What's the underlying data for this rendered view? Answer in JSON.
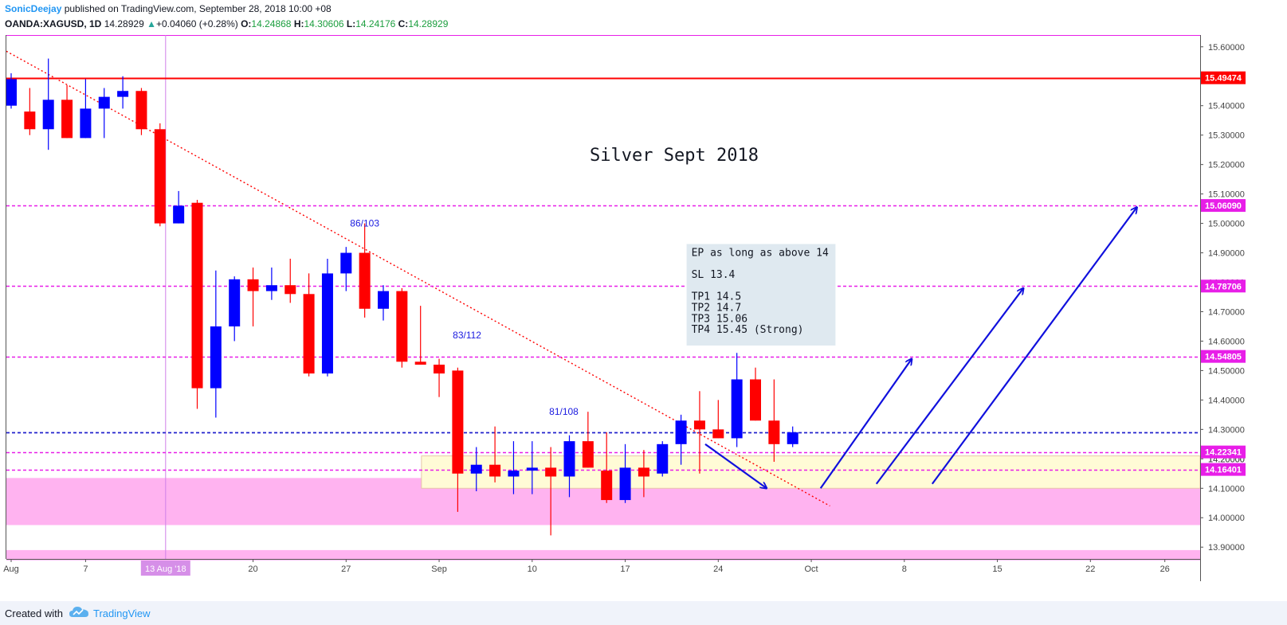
{
  "header": {
    "author": "SonicDeejay",
    "published": " published on TradingView.com, September 28, 2018 10:00 +08",
    "symbol": "OANDA:XAGUSD, 1D",
    "last": "14.28929",
    "up_arrow": "▲",
    "change": "+0.04060 (+0.28%)",
    "o_label": "O:",
    "o": "14.24868",
    "h_label": "H:",
    "h": "14.30606",
    "l_label": "L:",
    "l": "14.24176",
    "c_label": "C:",
    "c": "14.28929"
  },
  "footer": {
    "created_with": "Created with",
    "brand": "TradingView"
  },
  "chart_data": {
    "type": "candlestick",
    "title": "Silver Sept 2018",
    "colors": {
      "up": "#0000ff",
      "down": "#ff0000",
      "hline_red": "#ff0000",
      "hline_magenta": "#e81ee8",
      "hline_blue": "#2222cc",
      "zone": "#ffb3f0",
      "arrow": "#1010dd"
    },
    "y_range": [
      13.86,
      15.64
    ],
    "y_ticks": [
      "15.60000",
      "15.50000",
      "15.40000",
      "15.30000",
      "15.20000",
      "15.10000",
      "15.00000",
      "14.90000",
      "14.80000",
      "14.70000",
      "14.60000",
      "14.50000",
      "14.40000",
      "14.30000",
      "14.20000",
      "14.10000",
      "14.00000",
      "13.90000"
    ],
    "x_ticks": [
      {
        "label": "Aug",
        "index": 0
      },
      {
        "label": "7",
        "index": 4
      },
      {
        "label": "20",
        "index": 13
      },
      {
        "label": "27",
        "index": 18
      },
      {
        "label": "Sep",
        "index": 23
      },
      {
        "label": "10",
        "index": 28
      },
      {
        "label": "17",
        "index": 33
      },
      {
        "label": "24",
        "index": 38
      },
      {
        "label": "Oct",
        "index": 43
      },
      {
        "label": "8",
        "index": 48
      },
      {
        "label": "15",
        "index": 53
      },
      {
        "label": "22",
        "index": 58
      },
      {
        "label": "26",
        "index": 62
      }
    ],
    "x_marker": {
      "label": "13 Aug '18",
      "index": 8.3
    },
    "candles": [
      {
        "o": 15.4,
        "h": 15.51,
        "l": 15.39,
        "c": 15.49
      },
      {
        "o": 15.38,
        "h": 15.46,
        "l": 15.3,
        "c": 15.32
      },
      {
        "o": 15.32,
        "h": 15.56,
        "l": 15.25,
        "c": 15.42
      },
      {
        "o": 15.42,
        "h": 15.47,
        "l": 15.29,
        "c": 15.29
      },
      {
        "o": 15.29,
        "h": 15.49,
        "l": 15.29,
        "c": 15.39
      },
      {
        "o": 15.39,
        "h": 15.46,
        "l": 15.29,
        "c": 15.43
      },
      {
        "o": 15.43,
        "h": 15.5,
        "l": 15.39,
        "c": 15.45
      },
      {
        "o": 15.45,
        "h": 15.46,
        "l": 15.3,
        "c": 15.32
      },
      {
        "o": 15.32,
        "h": 15.34,
        "l": 14.99,
        "c": 15.0
      },
      {
        "o": 15.0,
        "h": 15.11,
        "l": 15.0,
        "c": 15.06
      },
      {
        "o": 15.07,
        "h": 15.08,
        "l": 14.37,
        "c": 14.44
      },
      {
        "o": 14.44,
        "h": 14.84,
        "l": 14.34,
        "c": 14.65
      },
      {
        "o": 14.65,
        "h": 14.82,
        "l": 14.6,
        "c": 14.81
      },
      {
        "o": 14.81,
        "h": 14.85,
        "l": 14.65,
        "c": 14.77
      },
      {
        "o": 14.77,
        "h": 14.85,
        "l": 14.74,
        "c": 14.79
      },
      {
        "o": 14.79,
        "h": 14.88,
        "l": 14.73,
        "c": 14.76
      },
      {
        "o": 14.76,
        "h": 14.83,
        "l": 14.48,
        "c": 14.49
      },
      {
        "o": 14.49,
        "h": 14.88,
        "l": 14.48,
        "c": 14.83
      },
      {
        "o": 14.83,
        "h": 14.92,
        "l": 14.77,
        "c": 14.9
      },
      {
        "o": 14.9,
        "h": 15.0,
        "l": 14.68,
        "c": 14.71
      },
      {
        "o": 14.71,
        "h": 14.79,
        "l": 14.67,
        "c": 14.77
      },
      {
        "o": 14.77,
        "h": 14.78,
        "l": 14.51,
        "c": 14.53
      },
      {
        "o": 14.53,
        "h": 14.72,
        "l": 14.52,
        "c": 14.52
      },
      {
        "o": 14.52,
        "h": 14.54,
        "l": 14.41,
        "c": 14.49
      },
      {
        "o": 14.5,
        "h": 14.51,
        "l": 14.02,
        "c": 14.15
      },
      {
        "o": 14.15,
        "h": 14.24,
        "l": 14.09,
        "c": 14.18
      },
      {
        "o": 14.18,
        "h": 14.31,
        "l": 14.12,
        "c": 14.14
      },
      {
        "o": 14.14,
        "h": 14.26,
        "l": 14.08,
        "c": 14.16
      },
      {
        "o": 14.16,
        "h": 14.26,
        "l": 14.08,
        "c": 14.17
      },
      {
        "o": 14.17,
        "h": 14.24,
        "l": 13.94,
        "c": 14.14
      },
      {
        "o": 14.14,
        "h": 14.28,
        "l": 14.07,
        "c": 14.26
      },
      {
        "o": 14.26,
        "h": 14.36,
        "l": 14.17,
        "c": 14.17
      },
      {
        "o": 14.16,
        "h": 14.29,
        "l": 14.05,
        "c": 14.06
      },
      {
        "o": 14.06,
        "h": 14.25,
        "l": 14.05,
        "c": 14.17
      },
      {
        "o": 14.17,
        "h": 14.23,
        "l": 14.07,
        "c": 14.14
      },
      {
        "o": 14.15,
        "h": 14.26,
        "l": 14.14,
        "c": 14.25
      },
      {
        "o": 14.25,
        "h": 14.35,
        "l": 14.18,
        "c": 14.33
      },
      {
        "o": 14.33,
        "h": 14.43,
        "l": 14.15,
        "c": 14.3
      },
      {
        "o": 14.3,
        "h": 14.4,
        "l": 14.27,
        "c": 14.27
      },
      {
        "o": 14.27,
        "h": 14.56,
        "l": 14.24,
        "c": 14.47
      },
      {
        "o": 14.47,
        "h": 14.51,
        "l": 14.33,
        "c": 14.33
      },
      {
        "o": 14.33,
        "h": 14.47,
        "l": 14.19,
        "c": 14.25
      },
      {
        "o": 14.25,
        "h": 14.31,
        "l": 14.24,
        "c": 14.29
      }
    ],
    "h_levels": [
      {
        "value": 15.49474,
        "label": "15.49474",
        "style": "solid-red"
      },
      {
        "value": 15.0609,
        "label": "15.06090",
        "style": "dashed-magenta"
      },
      {
        "value": 14.78706,
        "label": "14.78706",
        "style": "dashed-magenta"
      },
      {
        "value": 14.54805,
        "label": "14.54805",
        "style": "dashed-magenta"
      },
      {
        "value": 14.28929,
        "label": "",
        "style": "dashed-blue"
      },
      {
        "value": 14.22341,
        "label": "14.22341",
        "style": "dashed-magenta"
      },
      {
        "value": 14.16401,
        "label": "14.16401",
        "style": "dashed-magenta"
      }
    ],
    "partial_tick": "14.20000",
    "zones": [
      {
        "from": 13.975,
        "to": 14.135,
        "x0_index": -0.3,
        "x1_index": 64.3,
        "color": "#ffb3f0"
      },
      {
        "from": 13.855,
        "to": 13.89,
        "x0_index": -0.3,
        "x1_index": 64.3,
        "color": "#ffb3f0"
      },
      {
        "from": 14.1,
        "to": 14.21,
        "x0_index": 22.05,
        "x1_index": 64.3,
        "color": "#fffbd6"
      }
    ],
    "trendline": {
      "x0_index": -0.3,
      "y0": 15.585,
      "x1_index": 44.0,
      "y1": 14.04
    },
    "annotations": [
      {
        "text": "86/103",
        "x_index": 19.0,
        "y": 15.0
      },
      {
        "text": "83/112",
        "x_index": 24.5,
        "y": 14.62
      },
      {
        "text": "81/108",
        "x_index": 29.7,
        "y": 14.36
      }
    ],
    "note_box": {
      "x0_index": 36.3,
      "x1_index": 44.3,
      "top": 14.93,
      "bottom": 14.585,
      "lines": [
        "EP as long as above 14",
        "",
        "SL 13.4",
        "",
        "TP1 14.5",
        "TP2 14.7",
        "TP3 15.06",
        "TP4 15.45 (Strong)"
      ]
    },
    "arrows": [
      {
        "x0": 37.3,
        "y0": 14.25,
        "x1": 40.6,
        "y1": 14.1
      },
      {
        "x0": 43.5,
        "y0": 14.1,
        "x1": 48.4,
        "y1": 14.54
      },
      {
        "x0": 46.5,
        "y0": 14.115,
        "x1": 54.4,
        "y1": 14.78
      },
      {
        "x0": 49.5,
        "y0": 14.115,
        "x1": 60.5,
        "y1": 15.055
      }
    ]
  }
}
